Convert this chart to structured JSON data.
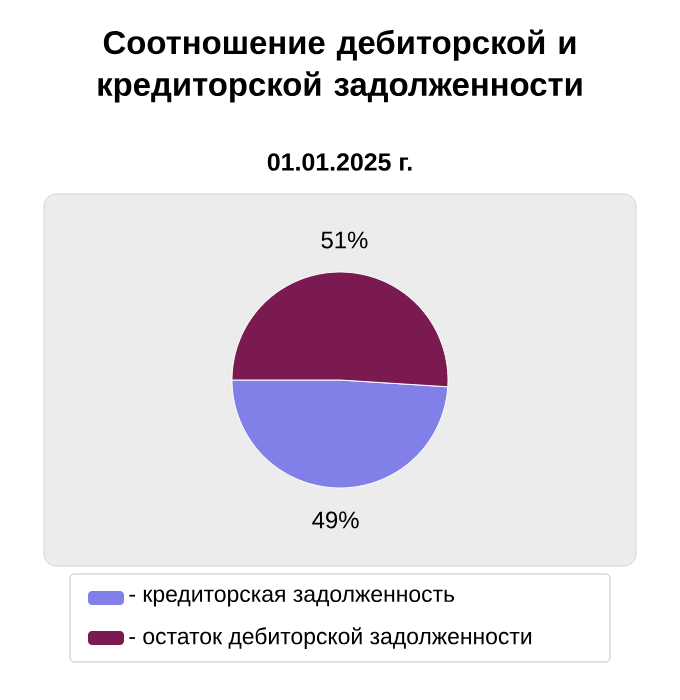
{
  "chart_data": {
    "type": "pie",
    "title": "Соотношение дебиторской и кредиторской задолженности",
    "subtitle": "01.01.2025 г.",
    "categories": [
      "- кредиторская задолженность",
      "- остаток дебиторской задолженности"
    ],
    "values": [
      49,
      51
    ],
    "colors": [
      "#8080e8",
      "#7a1a50"
    ],
    "value_labels": [
      "49%",
      "51%"
    ],
    "legend": "bottom"
  }
}
